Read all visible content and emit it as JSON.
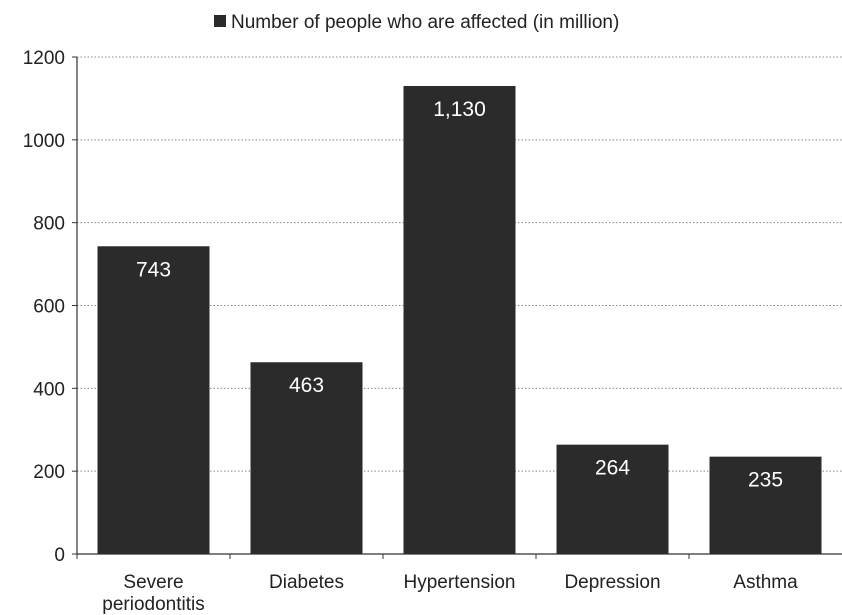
{
  "chart_data": {
    "type": "bar",
    "categories": [
      "Severe periodontitis",
      "Diabetes",
      "Hypertension",
      "Depression",
      "Asthma"
    ],
    "category_label_lines": [
      [
        "Severe",
        "periodontitis"
      ],
      [
        "Diabetes"
      ],
      [
        "Hypertension"
      ],
      [
        "Depression"
      ],
      [
        "Asthma"
      ]
    ],
    "series": [
      {
        "name": "Number of people who are affected (in million)",
        "values": [
          743,
          463,
          1130,
          264,
          235
        ],
        "data_labels": [
          "743",
          "463",
          "1,130",
          "264",
          "235"
        ]
      }
    ],
    "ylim": [
      0,
      1200
    ],
    "yticks": [
      0,
      200,
      400,
      600,
      800,
      1000,
      1200
    ],
    "grid": "horizontal-dotted",
    "legend_position": "top-center",
    "colors": {
      "bar": "#2b2b2b",
      "axis": "#333333",
      "grid": "#888888"
    }
  }
}
